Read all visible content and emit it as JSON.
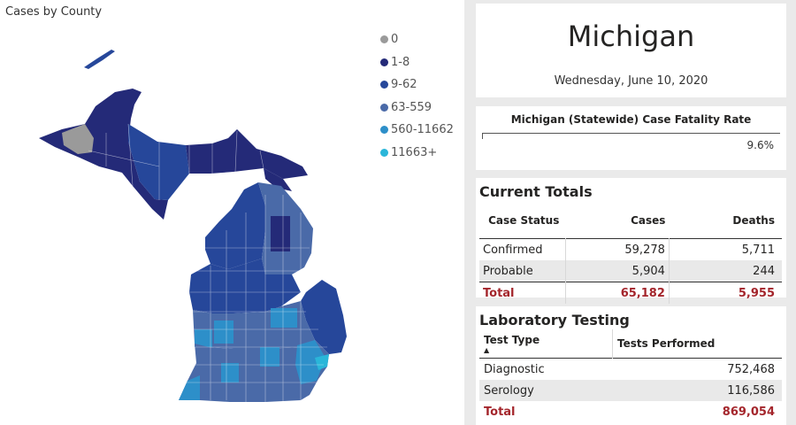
{
  "map": {
    "title": "Cases by County",
    "legend": [
      {
        "label": "0",
        "color": "#9a9a9a"
      },
      {
        "label": "1-8",
        "color": "#242a78"
      },
      {
        "label": "9-62",
        "color": "#26479a"
      },
      {
        "label": "63-559",
        "color": "#4a6aa8"
      },
      {
        "label": "560-11662",
        "color": "#2d8fc9"
      },
      {
        "label": "11663+",
        "color": "#2ab6d9"
      }
    ]
  },
  "header": {
    "state": "Michigan",
    "date": "Wednesday, June 10, 2020"
  },
  "cfr": {
    "label": "Michigan (Statewide) Case Fatality Rate",
    "value": "9.6%"
  },
  "totals": {
    "title": "Current Totals",
    "columns": [
      "Case Status",
      "Cases",
      "Deaths"
    ],
    "rows": [
      {
        "status": "Confirmed",
        "cases": "59,278",
        "deaths": "5,711"
      },
      {
        "status": "Probable",
        "cases": "5,904",
        "deaths": "244"
      }
    ],
    "total": {
      "status": "Total",
      "cases": "65,182",
      "deaths": "5,955"
    }
  },
  "lab": {
    "title": "Laboratory Testing",
    "columns": [
      "Test Type",
      "Tests Performed"
    ],
    "rows": [
      {
        "type": "Diagnostic",
        "tests": "752,468"
      },
      {
        "type": "Serology",
        "tests": "116,586"
      }
    ],
    "total": {
      "type": "Total",
      "tests": "869,054"
    },
    "sort_icon": "sort-ascending-icon"
  },
  "colors": {
    "total_text": "#a4262c",
    "accent_navy": "#242a78"
  }
}
